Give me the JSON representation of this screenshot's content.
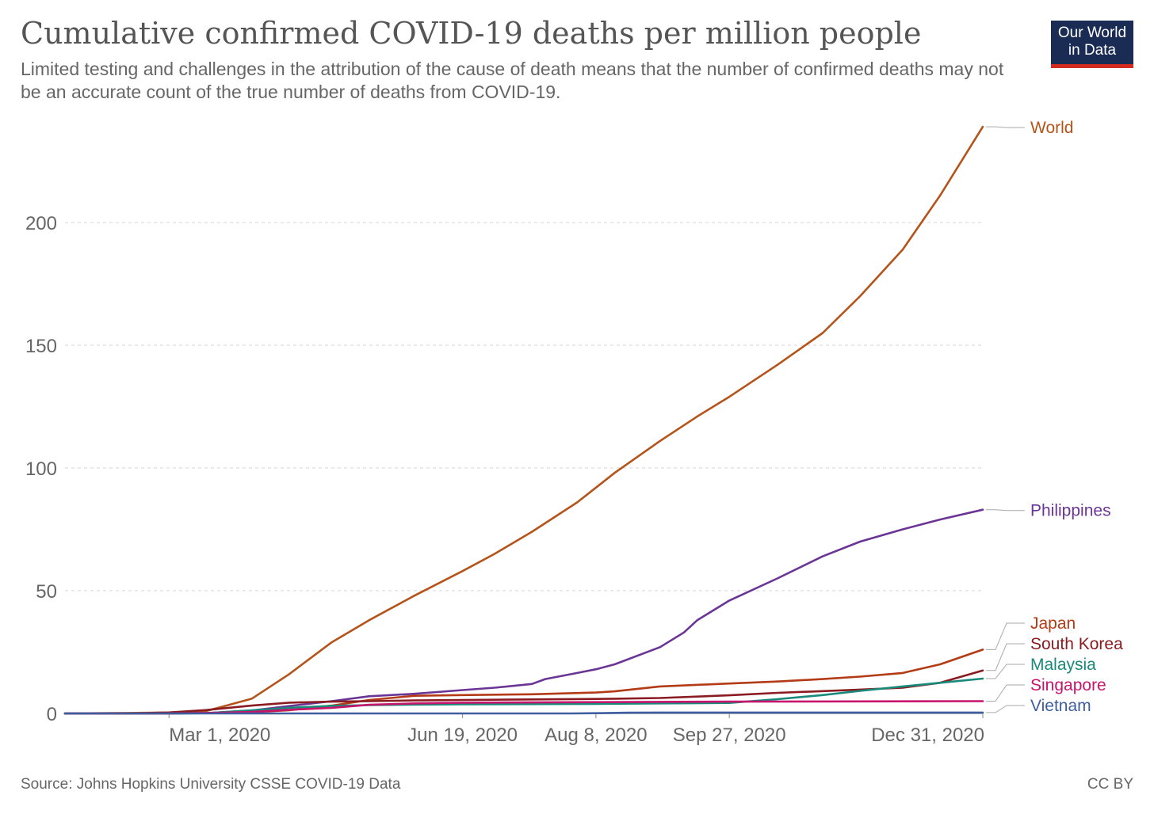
{
  "header": {
    "title": "Cumulative confirmed COVID-19 deaths per million people",
    "subtitle": "Limited testing and challenges in the attribution of the cause of death means that the number of confirmed deaths may not be an accurate count of the true number of deaths from COVID-19.",
    "logo_line1": "Our World",
    "logo_line2": "in Data"
  },
  "footer": {
    "source": "Source: Johns Hopkins University CSSE COVID-19 Data",
    "license": "CC BY"
  },
  "colors": {
    "logo_bg": "#1a2c54",
    "logo_bar": "#d42b21",
    "grid": "#dddddd",
    "axis": "#999999",
    "text": "#666666"
  },
  "chart_data": {
    "type": "line",
    "title": "Cumulative confirmed COVID-19 deaths per million people",
    "xlabel": "",
    "ylabel": "",
    "xlim": [
      "2020-01-22",
      "2020-12-31"
    ],
    "ylim": [
      0,
      240
    ],
    "x_ticks": [
      {
        "date": "2020-03-01",
        "label": "Mar 1, 2020"
      },
      {
        "date": "2020-06-19",
        "label": "Jun 19, 2020"
      },
      {
        "date": "2020-08-08",
        "label": "Aug 8, 2020"
      },
      {
        "date": "2020-09-27",
        "label": "Sep 27, 2020"
      },
      {
        "date": "2020-12-31",
        "label": "Dec 31, 2020"
      }
    ],
    "y_ticks": [
      0,
      50,
      100,
      150,
      200
    ],
    "grid": "horizontal dashed",
    "legend": "right, end-of-line labels",
    "series": [
      {
        "name": "World",
        "color": "#b5541a",
        "points": [
          [
            "2020-01-22",
            0
          ],
          [
            "2020-02-15",
            0.2
          ],
          [
            "2020-03-01",
            0.4
          ],
          [
            "2020-03-15",
            1
          ],
          [
            "2020-04-01",
            6
          ],
          [
            "2020-04-15",
            16
          ],
          [
            "2020-05-01",
            29
          ],
          [
            "2020-05-15",
            38
          ],
          [
            "2020-06-01",
            48
          ],
          [
            "2020-06-19",
            58
          ],
          [
            "2020-07-01",
            65
          ],
          [
            "2020-07-15",
            74
          ],
          [
            "2020-08-01",
            86
          ],
          [
            "2020-08-08",
            92
          ],
          [
            "2020-08-15",
            98
          ],
          [
            "2020-09-01",
            111
          ],
          [
            "2020-09-15",
            121
          ],
          [
            "2020-09-27",
            129
          ],
          [
            "2020-10-15",
            142
          ],
          [
            "2020-11-01",
            155
          ],
          [
            "2020-11-15",
            170
          ],
          [
            "2020-12-01",
            189
          ],
          [
            "2020-12-15",
            211
          ],
          [
            "2020-12-31",
            239
          ]
        ]
      },
      {
        "name": "Philippines",
        "color": "#6b3595",
        "points": [
          [
            "2020-01-22",
            0
          ],
          [
            "2020-03-01",
            0
          ],
          [
            "2020-03-15",
            0.1
          ],
          [
            "2020-04-01",
            1.2
          ],
          [
            "2020-04-15",
            3
          ],
          [
            "2020-05-01",
            5
          ],
          [
            "2020-05-15",
            7
          ],
          [
            "2020-06-01",
            8
          ],
          [
            "2020-06-19",
            9.5
          ],
          [
            "2020-07-01",
            10.5
          ],
          [
            "2020-07-15",
            12
          ],
          [
            "2020-07-20",
            14
          ],
          [
            "2020-08-01",
            16.5
          ],
          [
            "2020-08-08",
            18
          ],
          [
            "2020-08-15",
            20
          ],
          [
            "2020-09-01",
            27
          ],
          [
            "2020-09-10",
            33
          ],
          [
            "2020-09-15",
            38
          ],
          [
            "2020-09-27",
            46
          ],
          [
            "2020-10-15",
            55
          ],
          [
            "2020-11-01",
            64
          ],
          [
            "2020-11-15",
            70
          ],
          [
            "2020-12-01",
            75
          ],
          [
            "2020-12-15",
            79
          ],
          [
            "2020-12-31",
            83
          ]
        ]
      },
      {
        "name": "Japan",
        "color": "#b33b16",
        "points": [
          [
            "2020-01-22",
            0
          ],
          [
            "2020-02-15",
            0.01
          ],
          [
            "2020-03-01",
            0.05
          ],
          [
            "2020-03-15",
            0.2
          ],
          [
            "2020-04-01",
            0.5
          ],
          [
            "2020-04-15",
            1.3
          ],
          [
            "2020-05-01",
            3.2
          ],
          [
            "2020-05-15",
            5.5
          ],
          [
            "2020-06-01",
            7.2
          ],
          [
            "2020-06-19",
            7.5
          ],
          [
            "2020-07-15",
            7.8
          ],
          [
            "2020-08-08",
            8.5
          ],
          [
            "2020-08-15",
            9
          ],
          [
            "2020-09-01",
            11
          ],
          [
            "2020-09-27",
            12.2
          ],
          [
            "2020-10-15",
            13
          ],
          [
            "2020-11-01",
            14
          ],
          [
            "2020-11-15",
            15
          ],
          [
            "2020-12-01",
            16.5
          ],
          [
            "2020-12-15",
            20
          ],
          [
            "2020-12-31",
            26
          ]
        ]
      },
      {
        "name": "South Korea",
        "color": "#8a1c21",
        "points": [
          [
            "2020-01-22",
            0
          ],
          [
            "2020-02-15",
            0
          ],
          [
            "2020-03-01",
            0.4
          ],
          [
            "2020-03-15",
            1.4
          ],
          [
            "2020-04-01",
            3.2
          ],
          [
            "2020-04-15",
            4.4
          ],
          [
            "2020-05-01",
            4.8
          ],
          [
            "2020-05-15",
            5
          ],
          [
            "2020-06-01",
            5.3
          ],
          [
            "2020-06-19",
            5.5
          ],
          [
            "2020-07-15",
            5.7
          ],
          [
            "2020-08-08",
            5.9
          ],
          [
            "2020-08-15",
            6
          ],
          [
            "2020-09-01",
            6.3
          ],
          [
            "2020-09-27",
            7.4
          ],
          [
            "2020-10-15",
            8.4
          ],
          [
            "2020-11-01",
            9.1
          ],
          [
            "2020-11-15",
            9.7
          ],
          [
            "2020-12-01",
            10.5
          ],
          [
            "2020-12-15",
            12.5
          ],
          [
            "2020-12-31",
            17.5
          ]
        ]
      },
      {
        "name": "Malaysia",
        "color": "#18897a",
        "points": [
          [
            "2020-01-22",
            0
          ],
          [
            "2020-03-01",
            0
          ],
          [
            "2020-03-15",
            0.1
          ],
          [
            "2020-04-01",
            1.3
          ],
          [
            "2020-04-15",
            2.3
          ],
          [
            "2020-05-01",
            3.1
          ],
          [
            "2020-05-15",
            3.4
          ],
          [
            "2020-06-01",
            3.6
          ],
          [
            "2020-06-19",
            3.7
          ],
          [
            "2020-07-15",
            3.8
          ],
          [
            "2020-08-08",
            3.9
          ],
          [
            "2020-09-01",
            4.1
          ],
          [
            "2020-09-27",
            4.3
          ],
          [
            "2020-10-15",
            5.8
          ],
          [
            "2020-11-01",
            7.5
          ],
          [
            "2020-11-15",
            9.2
          ],
          [
            "2020-12-01",
            11
          ],
          [
            "2020-12-15",
            12.5
          ],
          [
            "2020-12-31",
            14.2
          ]
        ]
      },
      {
        "name": "Singapore",
        "color": "#c7156c",
        "points": [
          [
            "2020-01-22",
            0
          ],
          [
            "2020-03-01",
            0
          ],
          [
            "2020-03-20",
            0.3
          ],
          [
            "2020-04-01",
            0.6
          ],
          [
            "2020-04-15",
            1.5
          ],
          [
            "2020-05-01",
            2.3
          ],
          [
            "2020-05-15",
            3.5
          ],
          [
            "2020-06-01",
            4.1
          ],
          [
            "2020-06-19",
            4.4
          ],
          [
            "2020-08-08",
            4.6
          ],
          [
            "2020-09-27",
            4.8
          ],
          [
            "2020-12-31",
            5
          ]
        ]
      },
      {
        "name": "Vietnam",
        "color": "#3e5ea0",
        "points": [
          [
            "2020-01-22",
            0
          ],
          [
            "2020-07-30",
            0
          ],
          [
            "2020-08-08",
            0.1
          ],
          [
            "2020-08-20",
            0.3
          ],
          [
            "2020-09-01",
            0.35
          ],
          [
            "2020-09-27",
            0.36
          ],
          [
            "2020-12-31",
            0.36
          ]
        ]
      }
    ]
  }
}
